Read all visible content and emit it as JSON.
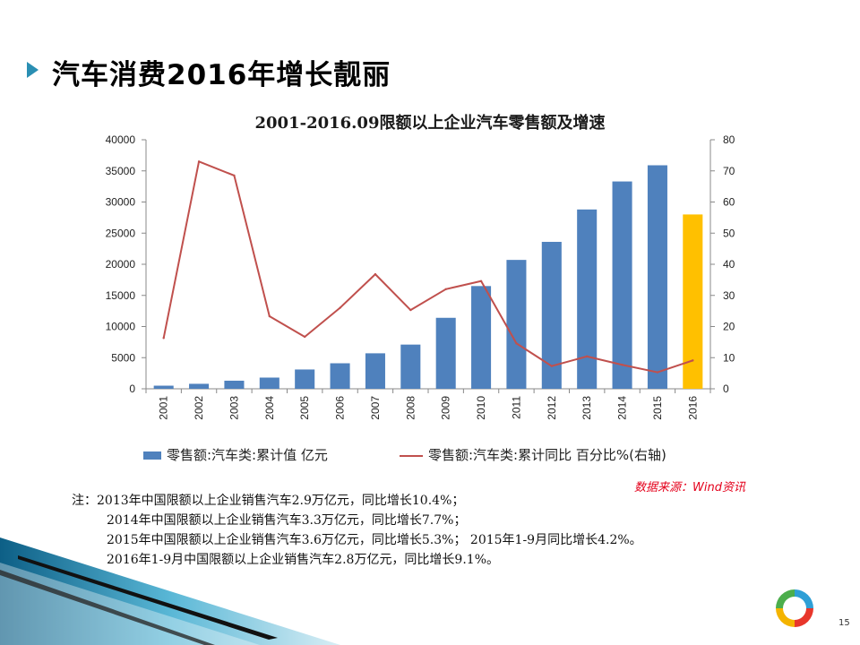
{
  "slide": {
    "title": "汽车消费2016年增长靓丽",
    "page_number": "15",
    "source": "数据来源：Wind资讯",
    "notes": {
      "prefix": "注：",
      "lines": [
        "2013年中国限额以上企业销售汽车2.9万亿元，同比增长10.4%；",
        "2014年中国限额以上企业销售汽车3.3万亿元，同比增长7.7%；",
        "2015年中国限额以上企业销售汽车3.6万亿元，同比增长5.3%； 2015年1-9月同比增长4.2%。",
        "2016年1-9月中国限额以上企业销售汽车2.8万亿元，同比增长9.1%。"
      ]
    }
  },
  "chart_data": {
    "type": "bar+line",
    "title": "2001-2016.09限额以上企业汽车零售额及增速",
    "categories": [
      "2001",
      "2002",
      "2003",
      "2004",
      "2005",
      "2006",
      "2007",
      "2008",
      "2009",
      "2010",
      "2011",
      "2012",
      "2013",
      "2014",
      "2015",
      "2016"
    ],
    "y_left": {
      "ylim": [
        0,
        40000
      ],
      "ticks": [
        0,
        5000,
        10000,
        15000,
        20000,
        25000,
        30000,
        35000,
        40000
      ]
    },
    "y_right": {
      "ylim": [
        0,
        80
      ],
      "ticks": [
        0,
        10,
        20,
        30,
        40,
        50,
        60,
        70,
        80
      ]
    },
    "series": [
      {
        "name": "零售额:汽车类:累计值 亿元",
        "type": "bar",
        "axis": "left",
        "color": "#4f81bd",
        "highlight_color": "#ffc000",
        "highlight_index": 15,
        "values": [
          500,
          800,
          1300,
          1800,
          3100,
          4100,
          5700,
          7100,
          11400,
          16500,
          20700,
          23600,
          28800,
          33300,
          35900,
          28000
        ]
      },
      {
        "name": "零售额:汽车类:累计同比 百分比%(右轴)",
        "type": "line",
        "axis": "right",
        "color": "#c0504d",
        "values": [
          16.3,
          73.0,
          68.5,
          23.3,
          16.7,
          26.0,
          36.8,
          25.3,
          32.0,
          34.6,
          14.6,
          7.3,
          10.4,
          7.7,
          5.3,
          9.1
        ]
      }
    ],
    "legend_position": "bottom",
    "grid": false
  },
  "colors": {
    "accent": "#2a8fb3",
    "source_text": "#e4001b"
  },
  "icons": {
    "bullet": "arrow-bullet-icon",
    "logo": "ring-logo-icon"
  }
}
